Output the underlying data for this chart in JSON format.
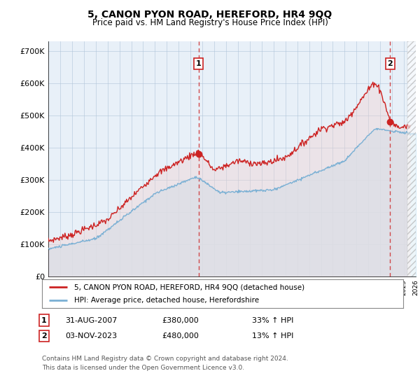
{
  "title": "5, CANON PYON ROAD, HEREFORD, HR4 9QQ",
  "subtitle": "Price paid vs. HM Land Registry's House Price Index (HPI)",
  "ylabel_ticks": [
    "£0",
    "£100K",
    "£200K",
    "£300K",
    "£400K",
    "£500K",
    "£600K",
    "£700K"
  ],
  "ytick_values": [
    0,
    100000,
    200000,
    300000,
    400000,
    500000,
    600000,
    700000
  ],
  "ylim": [
    0,
    730000
  ],
  "xlim_start": 1995.0,
  "xlim_end": 2026.0,
  "hpi_color": "#7ab0d4",
  "hpi_fill_color": "#d0e8f5",
  "price_color": "#cc2222",
  "vline_color": "#cc2222",
  "chart_bg_color": "#e8f0f8",
  "marker1_x": 2007.67,
  "marker1_y": 380000,
  "marker2_x": 2023.84,
  "marker2_y": 480000,
  "marker1_label": "1",
  "marker2_label": "2",
  "legend_line1": "5, CANON PYON ROAD, HEREFORD, HR4 9QQ (detached house)",
  "legend_line2": "HPI: Average price, detached house, Herefordshire",
  "footnote": "Contains HM Land Registry data © Crown copyright and database right 2024.\nThis data is licensed under the Open Government Licence v3.0.",
  "background_color": "#ffffff",
  "grid_color": "#b0c4d8"
}
